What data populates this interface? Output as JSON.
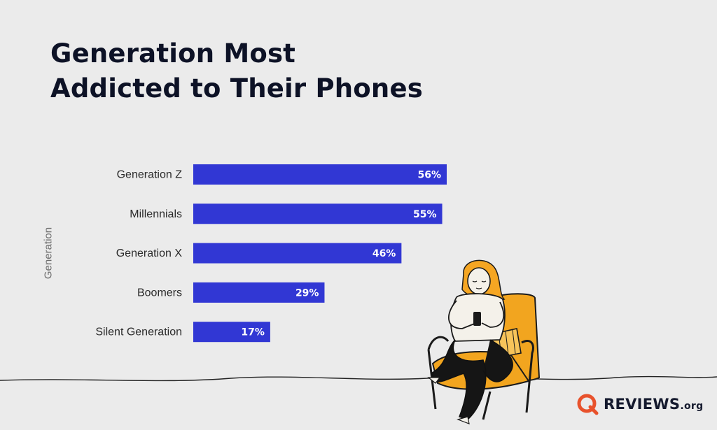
{
  "header": {
    "title_line1": "Generation Most",
    "title_line2": "Addicted to Their Phones"
  },
  "brand": {
    "name": "REVIEWS",
    "suffix": ".org",
    "color": "#e8522c"
  },
  "colors": {
    "bar": "#3137d4",
    "bar_label": "#ffffff",
    "category_label": "#2b2b2b",
    "illustration_chair": "#f2a51f",
    "illustration_hair": "#f5a623"
  },
  "chart_data": {
    "type": "bar",
    "orientation": "horizontal",
    "title": "Generation Most Addicted to Their Phones",
    "xlabel": "",
    "ylabel": "Generation",
    "categories": [
      "Generation Z",
      "Millennials",
      "Generation X",
      "Boomers",
      "Silent Generation"
    ],
    "values": [
      56,
      55,
      46,
      29,
      17
    ],
    "value_labels": [
      "56%",
      "55%",
      "46%",
      "29%",
      "17%"
    ],
    "unit": "%",
    "xlim": [
      0,
      56
    ],
    "grid": false,
    "legend": "none"
  }
}
